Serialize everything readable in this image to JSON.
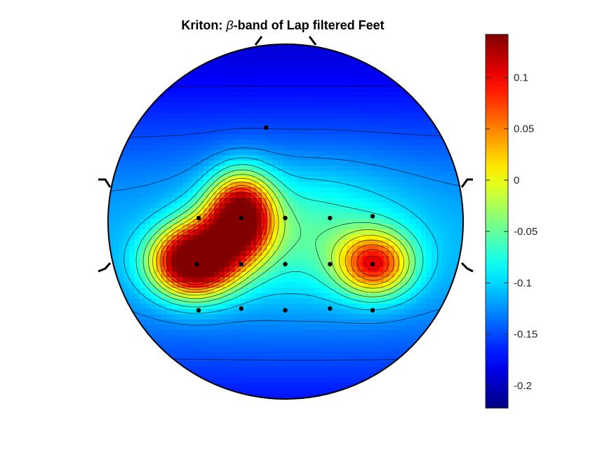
{
  "chart_data": {
    "type": "heatmap",
    "title_prefix": "Kriton: ",
    "title_symbol": "β",
    "title_suffix": "-band of Lap filtered Feet",
    "colormap": "jet",
    "clim": [
      -0.222,
      0.142
    ],
    "colorbar_ticks": [
      {
        "value": 0.1,
        "label": "0.1"
      },
      {
        "value": 0.05,
        "label": "0.05"
      },
      {
        "value": 0,
        "label": "0"
      },
      {
        "value": -0.05,
        "label": "-0.05"
      },
      {
        "value": -0.1,
        "label": "-0.1"
      },
      {
        "value": -0.15,
        "label": "-0.15"
      },
      {
        "value": -0.2,
        "label": "-0.2"
      }
    ],
    "electrodes": [
      {
        "x": -0.11,
        "y": 0.53
      },
      {
        "x": -0.49,
        "y": 0.02
      },
      {
        "x": -0.25,
        "y": 0.02
      },
      {
        "x": -0.002,
        "y": 0.02
      },
      {
        "x": 0.25,
        "y": 0.02
      },
      {
        "x": 0.49,
        "y": 0.03
      },
      {
        "x": -0.5,
        "y": -0.24
      },
      {
        "x": -0.25,
        "y": -0.24
      },
      {
        "x": -0.002,
        "y": -0.24
      },
      {
        "x": 0.25,
        "y": -0.24
      },
      {
        "x": 0.49,
        "y": -0.24
      },
      {
        "x": -0.49,
        "y": -0.5
      },
      {
        "x": -0.25,
        "y": -0.49
      },
      {
        "x": -0.002,
        "y": -0.5
      },
      {
        "x": 0.25,
        "y": -0.49
      },
      {
        "x": 0.49,
        "y": -0.5
      }
    ],
    "sources": [
      {
        "x": -0.52,
        "y": -0.23,
        "sx": 0.22,
        "sy": 0.18,
        "amp": 0.32
      },
      {
        "x": -0.25,
        "y": 0.03,
        "sx": 0.17,
        "sy": 0.22,
        "amp": 0.28
      },
      {
        "x": -0.4,
        "y": -0.1,
        "sx": 0.2,
        "sy": 0.2,
        "amp": 0.08
      },
      {
        "x": 0.5,
        "y": -0.24,
        "sx": 0.2,
        "sy": 0.17,
        "amp": 0.2
      },
      {
        "x": 0.1,
        "y": -0.05,
        "sx": 0.55,
        "sy": 0.35,
        "amp": 0.06
      }
    ],
    "base_field": {
      "offset": -0.215,
      "center_y": -0.15,
      "falloff": 0.95
    },
    "contour_levels": [
      -0.2,
      -0.175,
      -0.15,
      -0.125,
      -0.1,
      -0.075,
      -0.05,
      -0.025,
      0.0,
      0.025,
      0.05,
      0.075,
      0.1
    ]
  }
}
